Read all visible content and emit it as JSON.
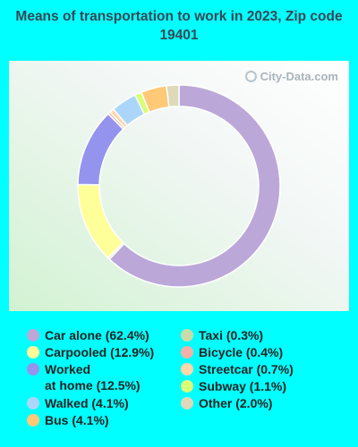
{
  "chart_data": {
    "type": "pie",
    "variant": "donut",
    "title": "Means of transportation to work in 2023, Zip code 19401",
    "watermark": "City-Data.com",
    "legend_position": "bottom",
    "slices": [
      {
        "label": "Car alone",
        "value": 62.4,
        "legend": "Car alone (62.4%)",
        "color": "#bba8d8"
      },
      {
        "label": "Taxi",
        "value": 0.3,
        "legend": "Taxi (0.3%)",
        "color": "#c8dcaa"
      },
      {
        "label": "Carpooled",
        "value": 12.9,
        "legend": "Carpooled (12.9%)",
        "color": "#ffff99"
      },
      {
        "label": "Worked at home",
        "value": 12.5,
        "legend": "Worked\nat home (12.5%)",
        "color": "#9494ee"
      },
      {
        "label": "Bicycle",
        "value": 0.4,
        "legend": "Bicycle (0.4%)",
        "color": "#f2b1a8"
      },
      {
        "label": "Streetcar",
        "value": 0.7,
        "legend": "Streetcar (0.7%)",
        "color": "#ffd7a8"
      },
      {
        "label": "Walked",
        "value": 4.1,
        "legend": "Walked (4.1%)",
        "color": "#abd6fa"
      },
      {
        "label": "Subway",
        "value": 1.1,
        "legend": "Subway (1.1%)",
        "color": "#d9ff77"
      },
      {
        "label": "Bus",
        "value": 4.1,
        "legend": "Bus (4.1%)",
        "color": "#ffc977"
      },
      {
        "label": "Other",
        "value": 2.0,
        "legend": "Other (2.0%)",
        "color": "#ddd9b9"
      }
    ],
    "legend_columns": [
      [
        "Car alone",
        "Carpooled",
        "Worked at home",
        "Walked",
        "Bus"
      ],
      [
        "Taxi",
        "Bicycle",
        "Streetcar",
        "Subway",
        "Other"
      ]
    ]
  }
}
